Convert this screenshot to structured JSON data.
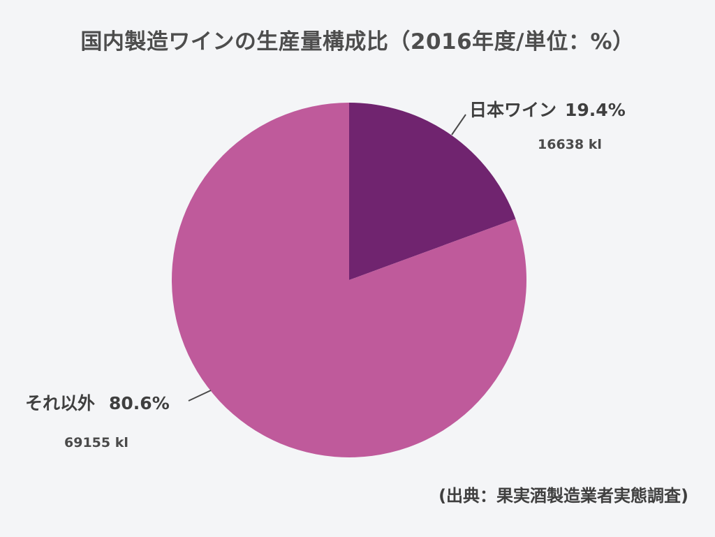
{
  "chart_data": {
    "type": "pie",
    "title": "国内製造ワインの生産量構成比（2016年度/単位：%）",
    "source": "(出典：果実酒製造業者実態調査)",
    "slices": [
      {
        "label": "日本ワイン",
        "percent": 19.4,
        "percent_text": "19.4%",
        "volume_text": "16638 kl",
        "color": "#70246f"
      },
      {
        "label": "それ以外",
        "percent": 80.6,
        "percent_text": "80.6%",
        "volume_text": "69155 kl",
        "color": "#bf5a9b"
      }
    ],
    "start_angle_deg": 0,
    "direction": "clockwise"
  },
  "colors": {
    "background": "#f4f5f7",
    "leader_line": "#4a4a4a"
  }
}
